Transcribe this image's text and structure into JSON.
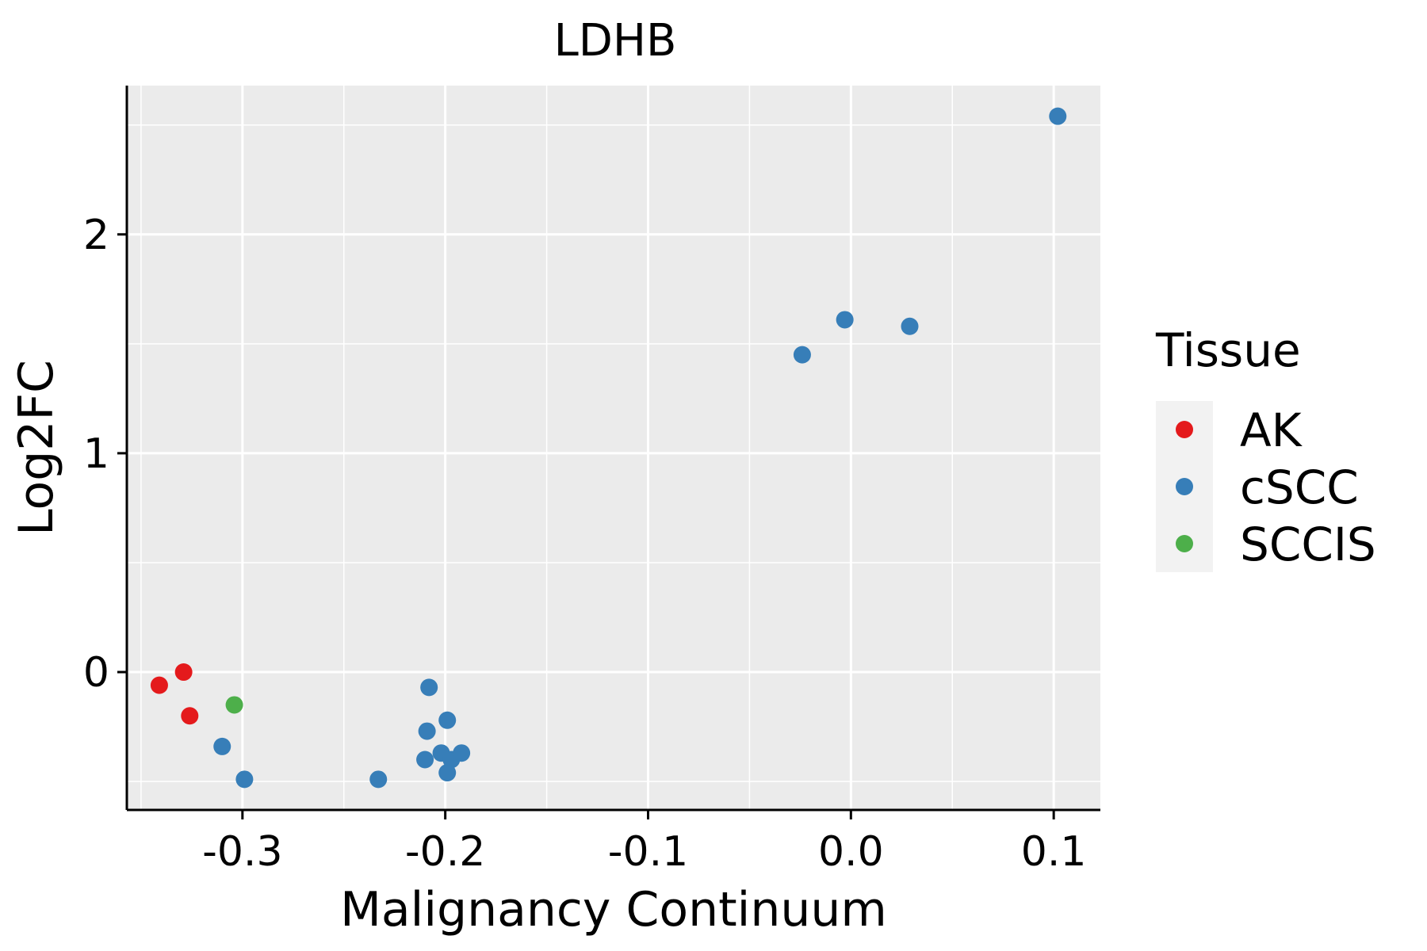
{
  "chart_data": {
    "type": "scatter",
    "title": "LDHB",
    "xlabel": "Malignancy Continuum",
    "ylabel": "Log2FC",
    "xlim": [
      -0.357,
      0.123
    ],
    "ylim": [
      -0.63,
      2.68
    ],
    "xticks": [
      -0.3,
      -0.2,
      -0.1,
      0.0,
      0.1
    ],
    "xtick_labels": [
      "-0.3",
      "-0.2",
      "-0.1",
      "0.0",
      "0.1"
    ],
    "yticks": [
      0,
      1,
      2
    ],
    "ytick_labels": [
      "0",
      "1",
      "2"
    ],
    "grid": true,
    "legend": {
      "title": "Tissue",
      "position": "right"
    },
    "series": [
      {
        "name": "AK",
        "color": "#E41A1C",
        "points": [
          {
            "x": -0.341,
            "y": -0.06
          },
          {
            "x": -0.329,
            "y": 0.0
          },
          {
            "x": -0.326,
            "y": -0.2
          }
        ]
      },
      {
        "name": "cSCC",
        "color": "#377EB8",
        "points": [
          {
            "x": -0.31,
            "y": -0.34
          },
          {
            "x": -0.299,
            "y": -0.49
          },
          {
            "x": -0.233,
            "y": -0.49
          },
          {
            "x": -0.208,
            "y": -0.07
          },
          {
            "x": -0.209,
            "y": -0.27
          },
          {
            "x": -0.21,
            "y": -0.4
          },
          {
            "x": -0.202,
            "y": -0.37
          },
          {
            "x": -0.199,
            "y": -0.22
          },
          {
            "x": -0.197,
            "y": -0.4
          },
          {
            "x": -0.199,
            "y": -0.46
          },
          {
            "x": -0.192,
            "y": -0.37
          },
          {
            "x": -0.024,
            "y": 1.45
          },
          {
            "x": -0.003,
            "y": 1.61
          },
          {
            "x": 0.029,
            "y": 1.58
          },
          {
            "x": 0.102,
            "y": 2.54
          }
        ]
      },
      {
        "name": "SCCIS",
        "color": "#4DAF4A",
        "points": [
          {
            "x": -0.304,
            "y": -0.15
          }
        ]
      }
    ]
  }
}
